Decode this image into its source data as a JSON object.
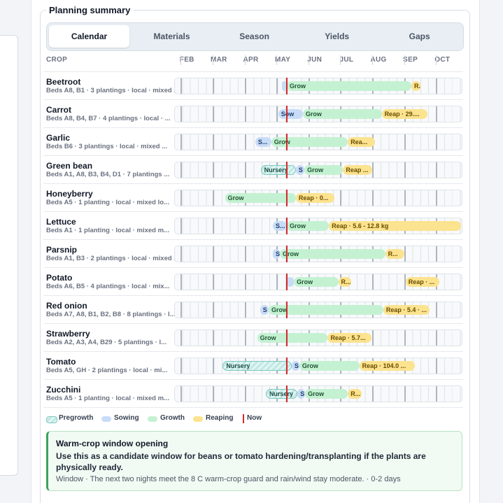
{
  "panel": {
    "title": "Planning summary"
  },
  "tabs": [
    "Calendar",
    "Materials",
    "Season",
    "Yields",
    "Gaps"
  ],
  "calendar": {
    "crop_header": "CROP",
    "xlim": [
      2.1,
      11.13
    ],
    "xticks": [
      {
        "value": 2.5,
        "label": "FEB"
      },
      {
        "value": 3.5,
        "label": "MAR"
      },
      {
        "value": 4.5,
        "label": "APR"
      },
      {
        "value": 5.5,
        "label": "MAY"
      },
      {
        "value": 6.5,
        "label": "JUN"
      },
      {
        "value": 7.5,
        "label": "JUL"
      },
      {
        "value": 8.5,
        "label": "AUG"
      },
      {
        "value": 9.5,
        "label": "SEP"
      },
      {
        "value": 10.5,
        "label": "OCT"
      }
    ],
    "now": 5.63,
    "rows": [
      {
        "name": "Beetroot",
        "details": "Beds A8, B1 · 3 plantings · local · mixed ...",
        "phases": [
          {
            "phase": "sowing",
            "start": 5.47,
            "end": 5.63
          },
          {
            "phase": "growth",
            "start": 5.63,
            "end": 9.53,
            "label": "Grow"
          },
          {
            "phase": "reaping",
            "start": 9.53,
            "end": 9.81,
            "label": "R."
          }
        ]
      },
      {
        "name": "Carrot",
        "details": "Beds A8, B4, B7 · 4 plantings · local · ...",
        "phases": [
          {
            "phase": "sowing",
            "start": 5.36,
            "end": 6.13,
            "label": "Sow"
          },
          {
            "phase": "growth",
            "start": 6.13,
            "end": 8.6,
            "label": "Grow"
          },
          {
            "phase": "reaping",
            "start": 8.6,
            "end": 10.03,
            "label": "Reap · 29...."
          }
        ]
      },
      {
        "name": "Garlic",
        "details": "Beds B6 · 3 plantings · local · mixed ...",
        "phases": [
          {
            "phase": "sowing",
            "start": 4.64,
            "end": 5.14,
            "label": "S..."
          },
          {
            "phase": "growth",
            "start": 5.14,
            "end": 7.54,
            "label": "Grow"
          },
          {
            "phase": "reaping",
            "start": 7.54,
            "end": 8.38,
            "label": "Rea..."
          }
        ]
      },
      {
        "name": "Green bean",
        "details": "Beds A1, A8, B3, B4, D1 · 7 plantings ...",
        "phases": [
          {
            "phase": "pregrowth",
            "start": 4.81,
            "end": 5.91,
            "label": "Nursery"
          },
          {
            "phase": "sowing",
            "start": 5.91,
            "end": 6.18,
            "label": "S"
          },
          {
            "phase": "growth",
            "start": 6.18,
            "end": 7.39,
            "label": "Grow"
          },
          {
            "phase": "reaping",
            "start": 7.39,
            "end": 8.31,
            "label": "Reap ..."
          }
        ]
      },
      {
        "name": "Honeyberry",
        "details": "Beds A5 · 1 planting · local · mixed lo...",
        "phases": [
          {
            "phase": "growth",
            "start": 3.69,
            "end": 5.91,
            "label": "Grow"
          },
          {
            "phase": "reaping",
            "start": 5.91,
            "end": 7.13,
            "label": "Reap · 0..."
          }
        ]
      },
      {
        "name": "Lettuce",
        "details": "Beds A1 · 1 planting · local · mixed m...",
        "phases": [
          {
            "phase": "sowing",
            "start": 5.19,
            "end": 5.63,
            "label": "S..."
          },
          {
            "phase": "growth",
            "start": 5.63,
            "end": 6.95,
            "label": "Grow"
          },
          {
            "phase": "reaping",
            "start": 6.95,
            "end": 11.09,
            "label": "Reap · 5.6 - 12.8 kg"
          }
        ]
      },
      {
        "name": "Parsnip",
        "details": "Beds A1, B3 · 2 plantings · local · mixed ...",
        "phases": [
          {
            "phase": "sowing",
            "start": 5.19,
            "end": 5.41,
            "label": "S"
          },
          {
            "phase": "growth",
            "start": 5.41,
            "end": 8.71,
            "label": "Grow"
          },
          {
            "phase": "reaping",
            "start": 8.71,
            "end": 9.31,
            "label": "R..."
          }
        ]
      },
      {
        "name": "Potato",
        "details": "Beds A6, B5 · 4 plantings · local · mix...",
        "phases": [
          {
            "phase": "sowing",
            "start": 5.61,
            "end": 5.85
          },
          {
            "phase": "growth",
            "start": 5.85,
            "end": 7.24,
            "label": "Grow"
          },
          {
            "phase": "reaping",
            "start": 7.24,
            "end": 7.65,
            "label": "R..."
          },
          {
            "phase": "reaping",
            "start": 9.35,
            "end": 10.41,
            "label": "Reap · ..."
          }
        ]
      },
      {
        "name": "Red onion",
        "details": "Beds A7, A8, B1, B2, B8 · 8 plantings · l...",
        "phases": [
          {
            "phase": "sowing",
            "start": 4.79,
            "end": 5.06,
            "label": "S"
          },
          {
            "phase": "growth",
            "start": 5.06,
            "end": 8.65,
            "label": "Grow"
          },
          {
            "phase": "reaping",
            "start": 8.65,
            "end": 10.1,
            "label": "Reap · 5.4 · ..."
          }
        ]
      },
      {
        "name": "Strawberry",
        "details": "Beds A2, A3, A4, B29 · 5 plantings · l...",
        "phases": [
          {
            "phase": "growth",
            "start": 4.7,
            "end": 6.91,
            "label": "Grow"
          },
          {
            "phase": "reaping",
            "start": 6.91,
            "end": 8.27,
            "label": "Reap · 5.7..."
          }
        ]
      },
      {
        "name": "Tomato",
        "details": "Beds A5, GH · 2 plantings · local · mi...",
        "phases": [
          {
            "phase": "pregrowth",
            "start": 3.62,
            "end": 5.78,
            "label": "Nursery"
          },
          {
            "phase": "sowing",
            "start": 5.78,
            "end": 6.02,
            "label": "S"
          },
          {
            "phase": "growth",
            "start": 6.02,
            "end": 7.9,
            "label": "Grow"
          },
          {
            "phase": "reaping",
            "start": 7.9,
            "end": 9.64,
            "label": "Reap · 104.0 ..."
          }
        ]
      },
      {
        "name": "Zucchini",
        "details": "Beds A5 · 1 planting · local · mixed m...",
        "phases": [
          {
            "phase": "pregrowth",
            "start": 4.97,
            "end": 5.96,
            "label": "Nursery"
          },
          {
            "phase": "sowing",
            "start": 5.96,
            "end": 6.2,
            "label": "S"
          },
          {
            "phase": "growth",
            "start": 6.2,
            "end": 7.54,
            "label": "Grow"
          },
          {
            "phase": "reaping",
            "start": 7.54,
            "end": 7.98,
            "label": "R..."
          }
        ]
      }
    ]
  },
  "legend": {
    "pregrowth": "Pregrowth",
    "sowing": "Sowing",
    "growth": "Growth",
    "reaping": "Reaping",
    "now": "Now"
  },
  "alert": {
    "title": "Warm-crop window opening",
    "body": "Use this as a candidate window for beans or tomato hardening/transplanting if the plants are physically ready.",
    "footer": "Window · The next two nights meet the 8 C warm-crop guard and rain/wind stay moderate. · 0-2 days"
  }
}
